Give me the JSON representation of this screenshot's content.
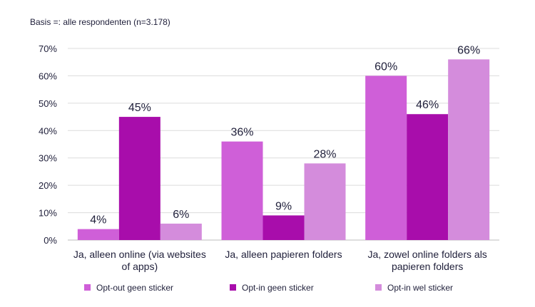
{
  "note": "Basis =: alle respondenten (n=3.178)",
  "chart_data": {
    "type": "bar",
    "categories": [
      [
        "Ja, alleen online (via websites",
        "of apps)"
      ],
      [
        "Ja, alleen papieren folders"
      ],
      [
        "Ja, zowel online folders als",
        "papieren folders"
      ]
    ],
    "series": [
      {
        "name": "Opt-out geen sticker",
        "color": "#cf5fd8",
        "values": [
          4,
          36,
          60
        ],
        "labels": [
          "4%",
          "36%",
          "60%"
        ]
      },
      {
        "name": "Opt-in geen sticker",
        "color": "#a80dab",
        "values": [
          45,
          9,
          46
        ],
        "labels": [
          "45%",
          "9%",
          "46%"
        ]
      },
      {
        "name": "Opt-in wel sticker",
        "color": "#d48cdc",
        "values": [
          6,
          28,
          66
        ],
        "labels": [
          "6%",
          "28%",
          "66%"
        ]
      }
    ],
    "ylim": [
      0,
      70
    ],
    "yticks": [
      0,
      10,
      20,
      30,
      40,
      50,
      60,
      70
    ],
    "ytick_labels": [
      "0%",
      "10%",
      "20%",
      "30%",
      "40%",
      "50%",
      "60%",
      "70%"
    ],
    "grid": true,
    "legend_position": "bottom"
  }
}
